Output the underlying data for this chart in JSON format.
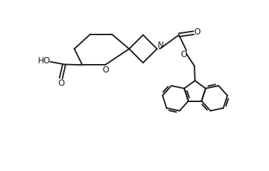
{
  "bg_color": "#ffffff",
  "line_color": "#1a1a1a",
  "line_width": 1.4,
  "font_size": 8.5,
  "fig_width": 3.82,
  "fig_height": 2.43,
  "dpi": 100,
  "xlim": [
    0,
    10
  ],
  "ylim": [
    0,
    6.36
  ]
}
